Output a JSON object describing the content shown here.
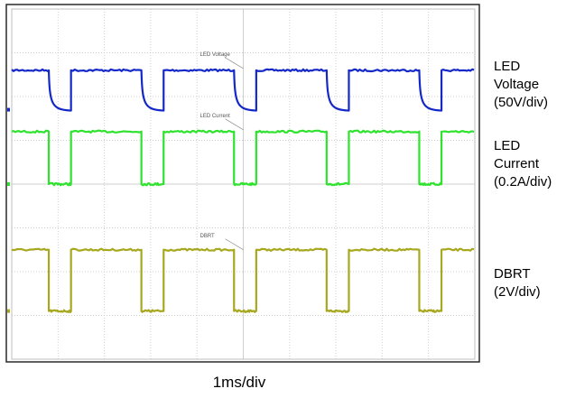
{
  "chart_data": {
    "type": "line",
    "title": "",
    "xlabel": "1ms/div",
    "grid": true,
    "x_divisions": 10,
    "y_divisions": 8,
    "period_ms": 1.0,
    "series": [
      {
        "name": "LED Voltage",
        "scale": "50V/div",
        "color": "#1428c8",
        "annotation": "LED Voltage",
        "high_div": 6.6,
        "low_div": 5.7,
        "low_duty": 0.06,
        "slow_decay": true,
        "marker": "LED Voltage"
      },
      {
        "name": "LED Current",
        "scale": "0.2A/div",
        "color": "#2ee22e",
        "annotation": "LED Current",
        "high_div": 5.2,
        "low_div": 4.0,
        "low_duty": 0.06,
        "slow_decay": false
      },
      {
        "name": "DBRT",
        "scale": "2V/div",
        "color": "#a8a820",
        "annotation": "DBRT",
        "high_div": 2.5,
        "low_div": 1.1,
        "low_duty": 0.06,
        "slow_decay": false
      }
    ]
  },
  "labels": {
    "led_voltage": [
      "LED",
      "Voltage",
      "(50V/div)"
    ],
    "led_current": [
      "LED",
      "Current",
      "(0.2A/div)"
    ],
    "dbrt": [
      "DBRT",
      "(2V/div)"
    ],
    "timebase": "1ms/div"
  }
}
